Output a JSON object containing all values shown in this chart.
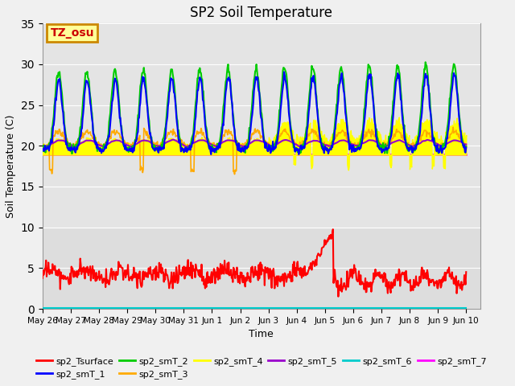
{
  "title": "SP2 Soil Temperature",
  "ylabel": "Soil Temperature (C)",
  "xlabel": "Time",
  "ylim": [
    0,
    35
  ],
  "yticks": [
    0,
    5,
    10,
    15,
    20,
    25,
    30,
    35
  ],
  "background_color": "#f0f0f0",
  "plot_bg_upper": "#dcdcdc",
  "plot_bg_lower": "#dcdcdc",
  "annotation_text": "TZ_osu",
  "annotation_bg": "#ffff99",
  "annotation_border": "#cc8800",
  "annotation_text_color": "#cc0000",
  "series_colors": {
    "sp2_Tsurface": "#ff0000",
    "sp2_smT_1": "#0000ff",
    "sp2_smT_2": "#00cc00",
    "sp2_smT_3": "#ffaa00",
    "sp2_smT_4": "#ffff00",
    "sp2_smT_5": "#9900cc",
    "sp2_smT_6": "#00cccc",
    "sp2_smT_7": "#ff00ff"
  },
  "xticklabels": [
    "May 26",
    "May 27",
    "May 28",
    "May 29",
    "May 30",
    "May 31",
    "Jun 1",
    "Jun 2",
    "Jun 3",
    "Jun 4",
    "Jun 5",
    "Jun 6",
    "Jun 7",
    "Jun 8",
    "Jun 9",
    "Jun 10"
  ],
  "xtick_positions": [
    0,
    1,
    2,
    3,
    4,
    5,
    6,
    7,
    8,
    9,
    10,
    11,
    12,
    13,
    14,
    15
  ],
  "smT7_value": 18.9,
  "smT6_value": 0.05
}
